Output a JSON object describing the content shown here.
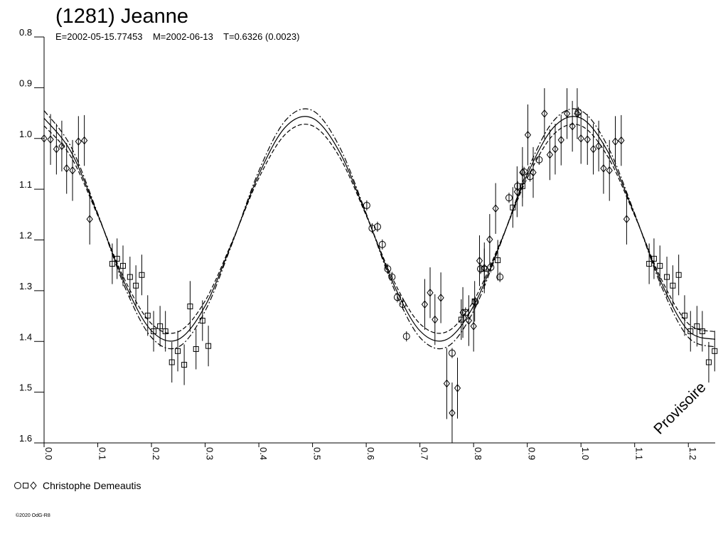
{
  "chart_data": {
    "type": "lightcurve",
    "title": "(1281) Jeanne",
    "subtitle": "E=2002-05-15.77453    M=2002-06-13    T=0.6326 (0.0023)",
    "legend": "Christophe Demeautis",
    "annotation": "Provisoire",
    "footer": "©2020 OdG-R8",
    "xlim": [
      0,
      1.25
    ],
    "ylim": [
      0.8,
      1.6
    ],
    "invert_y": true,
    "xticks": [
      {
        "value": 0,
        "label": "0.0"
      },
      0.1,
      0.2,
      0.3,
      0.4,
      0.5,
      0.6,
      0.7,
      0.8,
      0.9,
      {
        "value": 1,
        "label": "1.0"
      },
      1.1,
      1.2
    ],
    "yticks": [
      0.8,
      0.9,
      {
        "value": 1,
        "label": "1.0"
      },
      1.1,
      1.2,
      1.3,
      1.4,
      1.5,
      1.6
    ],
    "wrap_period": 1,
    "color": "#000000",
    "curve_x": [
      0,
      0.05,
      0.1,
      0.15,
      0.2,
      0.25,
      0.3,
      0.35,
      0.4,
      0.45,
      0.5,
      0.55,
      0.6,
      0.65,
      0.7,
      0.75,
      0.8,
      0.85,
      0.9,
      0.95,
      1,
      1.05,
      1.1,
      1.15,
      1.2,
      1.25
    ],
    "curves": [
      {
        "style": "solid",
        "values": [
          0.96,
          1.026,
          1.15,
          1.285,
          1.379,
          1.396,
          1.33,
          1.206,
          1.071,
          0.977,
          0.96,
          1.026,
          1.15,
          1.285,
          1.379,
          1.396,
          1.33,
          1.206,
          1.071,
          0.977,
          0.96,
          1.026,
          1.15,
          1.285,
          1.379,
          1.396
        ]
      },
      {
        "style": "dashdot",
        "values": [
          0.945,
          1.016,
          1.148,
          1.292,
          1.392,
          1.411,
          1.34,
          1.208,
          1.064,
          0.964,
          0.945,
          1.016,
          1.148,
          1.292,
          1.392,
          1.411,
          1.34,
          1.208,
          1.064,
          0.964,
          0.945,
          1.016,
          1.148,
          1.292,
          1.392,
          1.411
        ]
      },
      {
        "style": "dashed",
        "values": [
          0.975,
          1.036,
          1.152,
          1.278,
          1.365,
          1.381,
          1.32,
          1.204,
          1.078,
          0.991,
          0.975,
          1.036,
          1.152,
          1.278,
          1.365,
          1.381,
          1.32,
          1.204,
          1.078,
          0.991,
          0.975,
          1.036,
          1.152,
          1.278,
          1.365,
          1.381
        ]
      }
    ],
    "series": [
      {
        "marker": "circle",
        "x": [
          0.601,
          0.611,
          0.621,
          0.63,
          0.64,
          0.648,
          0.658,
          0.668,
          0.675,
          0.76,
          0.785,
          0.803,
          0.813,
          0.832,
          0.849,
          0.866,
          0.882,
          0.894,
          0.905,
          0.922,
          0.995
        ],
        "values": [
          1.132,
          1.177,
          1.174,
          1.209,
          1.257,
          1.273,
          1.313,
          1.327,
          1.39,
          1.423,
          1.343,
          1.322,
          1.257,
          1.254,
          1.273,
          1.117,
          1.094,
          1.066,
          1.075,
          1.042,
          0.948
        ],
        "errors": [
          0.01,
          0.01,
          0.01,
          0.01,
          0.01,
          0.01,
          0.01,
          0.01,
          0.01,
          0.01,
          0.01,
          0.01,
          0.01,
          0.01,
          0.01,
          0.01,
          0.01,
          0.01,
          0.01,
          0.01,
          0.01
        ]
      },
      {
        "marker": "square",
        "x": [
          0.127,
          0.136,
          0.147,
          0.16,
          0.171,
          0.182,
          0.193,
          0.204,
          0.216,
          0.226,
          0.238,
          0.249,
          0.261,
          0.272,
          0.283,
          0.295,
          0.306,
          0.777,
          0.802,
          0.82,
          0.845,
          0.873,
          0.891
        ],
        "values": [
          1.247,
          1.237,
          1.251,
          1.273,
          1.29,
          1.269,
          1.349,
          1.38,
          1.37,
          1.38,
          1.441,
          1.419,
          1.446,
          1.331,
          1.415,
          1.359,
          1.409,
          1.357,
          1.321,
          1.257,
          1.24,
          1.136,
          1.094
        ],
        "errors": [
          0.04,
          0.04,
          0.04,
          0.04,
          0.04,
          0.04,
          0.04,
          0.04,
          0.04,
          0.04,
          0.04,
          0.04,
          0.04,
          0.05,
          0.04,
          0.04,
          0.04,
          0.04,
          0.04,
          0.04,
          0.04,
          0.04,
          0.04
        ]
      },
      {
        "marker": "diamond",
        "x": [
          0,
          0.012,
          0.023,
          0.033,
          0.042,
          0.053,
          0.064,
          0.075,
          0.085,
          0.709,
          0.719,
          0.728,
          0.739,
          0.75,
          0.76,
          0.77,
          0.78,
          0.791,
          0.8,
          0.811,
          0.82,
          0.83,
          0.841,
          0.881,
          0.891,
          0.901,
          0.911,
          0.932,
          0.942,
          0.952,
          0.963,
          0.974,
          0.984,
          0.993
        ],
        "values": [
          1.0,
          1.002,
          1.021,
          1.015,
          1.059,
          1.063,
          1.006,
          1.004,
          1.159,
          1.327,
          1.304,
          1.357,
          1.314,
          1.483,
          1.541,
          1.492,
          1.343,
          1.359,
          1.37,
          1.241,
          1.255,
          1.199,
          1.138,
          1.105,
          1.067,
          0.993,
          1.067,
          0.951,
          1.032,
          1.021,
          1.003,
          0.951,
          0.976,
          0.951
        ],
        "errors": [
          0.05,
          0.05,
          0.05,
          0.05,
          0.05,
          0.06,
          0.05,
          0.05,
          0.05,
          0.05,
          0.05,
          0.05,
          0.05,
          0.07,
          0.06,
          0.06,
          0.05,
          0.05,
          0.05,
          0.05,
          0.05,
          0.05,
          0.05,
          0.05,
          0.05,
          0.06,
          0.05,
          0.05,
          0.05,
          0.05,
          0.05,
          0.05,
          0.05,
          0.05
        ]
      }
    ]
  }
}
